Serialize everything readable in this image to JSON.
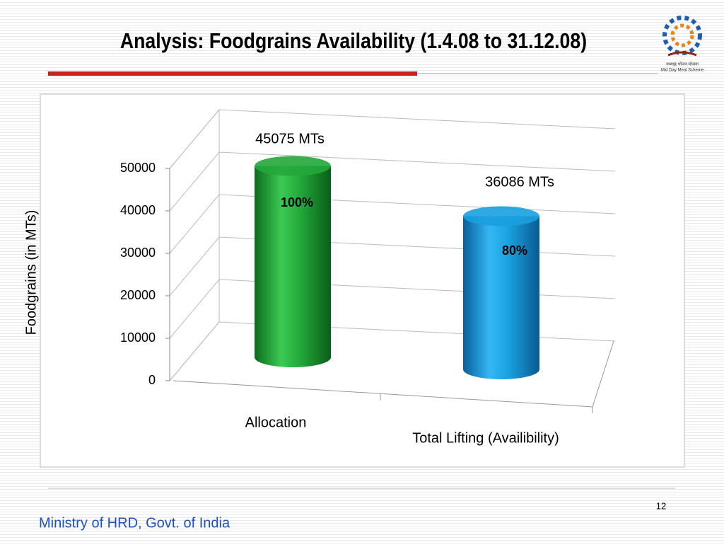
{
  "chart_data": {
    "type": "cylinder",
    "title": "Analysis: Foodgrains Availability (1.4.08 to 31.12.08)",
    "ylabel": "Foodgrains (in MTs)",
    "categories": [
      "Allocation",
      "Total Lifting (Availibility)"
    ],
    "values": [
      45075,
      36086
    ],
    "value_labels": [
      "45075 MTs",
      "36086 MTs"
    ],
    "annotations": [
      "100%",
      "80%"
    ],
    "colors": [
      "#22a83a",
      "#1aa0e0"
    ],
    "ylim": [
      0,
      50000
    ],
    "yticks": [
      0,
      10000,
      20000,
      30000,
      40000,
      50000
    ],
    "grid": true
  },
  "logo": {
    "hindi": "मध्याह्न भोजन योजना",
    "caption": "Mid Day Meal Scheme"
  },
  "footer": {
    "text": "Ministry of HRD, Govt. of India",
    "page": "12"
  }
}
